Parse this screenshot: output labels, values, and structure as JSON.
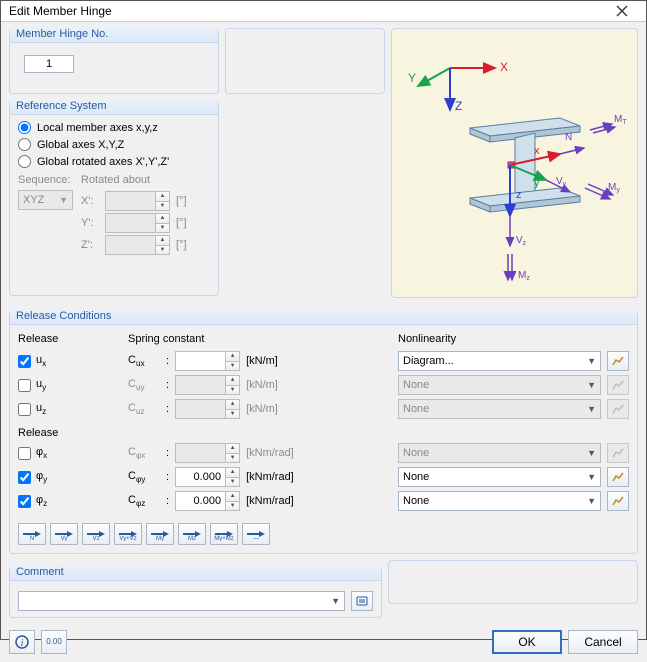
{
  "window": {
    "title": "Edit Member Hinge",
    "close_icon": "×"
  },
  "member_hinge": {
    "legend": "Member Hinge No.",
    "value": "1"
  },
  "ref_system": {
    "legend": "Reference System",
    "options": {
      "local": "Local member axes x,y,z",
      "global": "Global axes X,Y,Z",
      "rotated": "Global rotated axes X',Y',Z'"
    },
    "selected": "local",
    "sequence_label": "Sequence:",
    "sequence_value": "XYZ",
    "rotated_label": "Rotated about",
    "rows": [
      {
        "lbl": "X':",
        "val": "",
        "unit": "[°]"
      },
      {
        "lbl": "Y':",
        "val": "",
        "unit": "[°]"
      },
      {
        "lbl": "Z':",
        "val": "",
        "unit": "[°]"
      }
    ]
  },
  "release_conditions": {
    "legend": "Release Conditions",
    "hdr_release": "Release",
    "hdr_spring": "Spring constant",
    "hdr_nonlinearity": "Nonlinearity",
    "rows_trans": [
      {
        "name": "ux",
        "label": "u<sub>x</sub>",
        "checked": true,
        "spr_lbl": "C<sub>ux</sub>",
        "spr_val": "",
        "unit": "[kN/m]",
        "nonlin": "Diagram...",
        "nl_enabled": true
      },
      {
        "name": "uy",
        "label": "u<sub>y</sub>",
        "checked": false,
        "spr_lbl": "C<sub>uy</sub>",
        "spr_val": "",
        "unit": "[kN/m]",
        "nonlin": "None",
        "nl_enabled": false
      },
      {
        "name": "uz",
        "label": "u<sub>z</sub>",
        "checked": false,
        "spr_lbl": "C<sub>uz</sub>",
        "spr_val": "",
        "unit": "[kN/m]",
        "nonlin": "None",
        "nl_enabled": false
      }
    ],
    "rows_rot": [
      {
        "name": "phix",
        "label": "φ<sub>x</sub>",
        "checked": false,
        "spr_lbl": "C<sub>φx</sub>",
        "spr_val": "",
        "unit": "[kNm/rad]",
        "nonlin": "None",
        "nl_enabled": false
      },
      {
        "name": "phiy",
        "label": "φ<sub>y</sub>",
        "checked": true,
        "spr_lbl": "C<sub>φy</sub>",
        "spr_val": "0.000",
        "unit": "[kNm/rad]",
        "nonlin": "None",
        "nl_enabled": true
      },
      {
        "name": "phiz",
        "label": "φ<sub>z</sub>",
        "checked": true,
        "spr_lbl": "C<sub>φz</sub>",
        "spr_val": "0.000",
        "unit": "[kNm/rad]",
        "nonlin": "None",
        "nl_enabled": true
      }
    ],
    "template_labels": [
      "N",
      "Vy",
      "Vz",
      "Vy+Vz",
      "My",
      "Mz",
      "My+Mz",
      "—"
    ]
  },
  "comment": {
    "legend": "Comment",
    "value": ""
  },
  "buttons": {
    "ok": "OK",
    "cancel": "Cancel"
  },
  "colors": {
    "x_axis": "#d81e2c",
    "y_axis": "#16a34a",
    "z_axis": "#2a3ecf",
    "vz_arrow": "#6a3fbf",
    "panel_bg": "#f7f4df",
    "plate": "#cfe0ec",
    "plate_side": "#b0c6d7"
  }
}
